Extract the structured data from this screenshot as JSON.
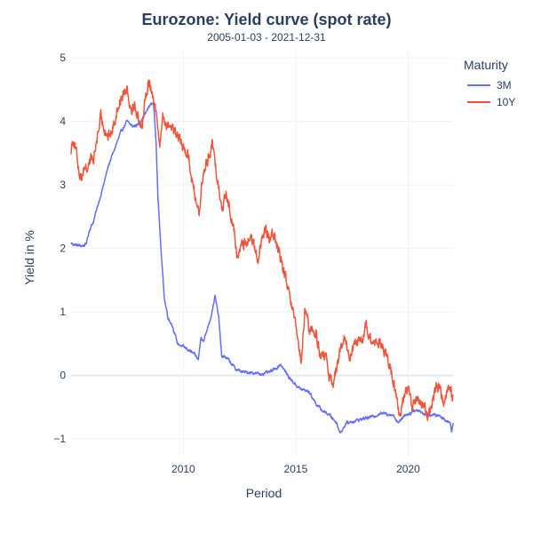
{
  "chart_data": {
    "type": "line",
    "title": "Eurozone: Yield curve (spot rate)",
    "subtitle": "2005-01-03 - 2021-12-31",
    "xlabel": "Period",
    "ylabel": "Yield in %",
    "xlim": [
      "2005-01-03",
      "2021-12-31"
    ],
    "ylim": [
      -1.25,
      5.1
    ],
    "x_ticks": [
      2010,
      2015,
      2020
    ],
    "y_ticks": [
      -1,
      0,
      1,
      2,
      3,
      4,
      5
    ],
    "grid": true,
    "legend": {
      "title": "Maturity",
      "placement": "top-right"
    },
    "series": [
      {
        "name": "3M",
        "color": "#636efa",
        "points": [
          [
            "2005-01-03",
            2.08
          ],
          [
            "2005-04-01",
            2.05
          ],
          [
            "2005-07-01",
            2.04
          ],
          [
            "2005-09-01",
            2.06
          ],
          [
            "2005-11-01",
            2.3
          ],
          [
            "2006-01-01",
            2.42
          ],
          [
            "2006-03-01",
            2.63
          ],
          [
            "2006-06-01",
            2.95
          ],
          [
            "2006-09-01",
            3.3
          ],
          [
            "2007-01-01",
            3.62
          ],
          [
            "2007-04-01",
            3.85
          ],
          [
            "2007-07-01",
            4.0
          ],
          [
            "2007-10-01",
            3.92
          ],
          [
            "2008-01-01",
            3.95
          ],
          [
            "2008-04-01",
            4.08
          ],
          [
            "2008-07-01",
            4.25
          ],
          [
            "2008-09-01",
            4.3
          ],
          [
            "2008-10-15",
            3.7
          ],
          [
            "2008-11-15",
            2.8
          ],
          [
            "2008-12-15",
            2.3
          ],
          [
            "2009-01-15",
            1.8
          ],
          [
            "2009-03-01",
            1.2
          ],
          [
            "2009-05-01",
            0.9
          ],
          [
            "2009-07-01",
            0.8
          ],
          [
            "2009-10-01",
            0.5
          ],
          [
            "2010-01-01",
            0.45
          ],
          [
            "2010-04-01",
            0.4
          ],
          [
            "2010-07-01",
            0.33
          ],
          [
            "2010-09-01",
            0.25
          ],
          [
            "2010-10-15",
            0.6
          ],
          [
            "2010-12-01",
            0.55
          ],
          [
            "2011-01-15",
            0.7
          ],
          [
            "2011-04-01",
            0.95
          ],
          [
            "2011-06-01",
            1.25
          ],
          [
            "2011-08-01",
            0.9
          ],
          [
            "2011-09-15",
            0.3
          ],
          [
            "2011-11-01",
            0.3
          ],
          [
            "2012-01-01",
            0.25
          ],
          [
            "2012-05-01",
            0.1
          ],
          [
            "2012-09-01",
            0.05
          ],
          [
            "2013-01-01",
            0.05
          ],
          [
            "2013-06-01",
            0.02
          ],
          [
            "2013-11-01",
            0.05
          ],
          [
            "2014-03-01",
            0.12
          ],
          [
            "2014-05-01",
            0.18
          ],
          [
            "2014-07-01",
            0.08
          ],
          [
            "2014-10-01",
            -0.05
          ],
          [
            "2015-01-01",
            -0.15
          ],
          [
            "2015-04-01",
            -0.22
          ],
          [
            "2015-08-01",
            -0.25
          ],
          [
            "2015-12-01",
            -0.45
          ],
          [
            "2016-03-01",
            -0.55
          ],
          [
            "2016-07-01",
            -0.62
          ],
          [
            "2016-11-01",
            -0.75
          ],
          [
            "2016-12-15",
            -0.9
          ],
          [
            "2017-02-01",
            -0.85
          ],
          [
            "2017-04-01",
            -0.75
          ],
          [
            "2017-08-01",
            -0.72
          ],
          [
            "2018-01-01",
            -0.68
          ],
          [
            "2018-06-01",
            -0.65
          ],
          [
            "2018-10-01",
            -0.6
          ],
          [
            "2019-01-01",
            -0.6
          ],
          [
            "2019-05-01",
            -0.62
          ],
          [
            "2019-08-01",
            -0.75
          ],
          [
            "2019-11-01",
            -0.62
          ],
          [
            "2020-02-01",
            -0.6
          ],
          [
            "2020-04-01",
            -0.55
          ],
          [
            "2020-07-01",
            -0.55
          ],
          [
            "2020-10-01",
            -0.62
          ],
          [
            "2021-01-01",
            -0.62
          ],
          [
            "2021-05-01",
            -0.63
          ],
          [
            "2021-08-01",
            -0.68
          ],
          [
            "2021-11-15",
            -0.75
          ],
          [
            "2021-12-10",
            -0.88
          ],
          [
            "2021-12-31",
            -0.75
          ]
        ]
      },
      {
        "name": "10Y",
        "color": "#ef553b",
        "points": [
          [
            "2005-01-03",
            3.55
          ],
          [
            "2005-02-01",
            3.75
          ],
          [
            "2005-03-01",
            3.65
          ],
          [
            "2005-05-01",
            3.3
          ],
          [
            "2005-06-15",
            3.1
          ],
          [
            "2005-08-01",
            3.3
          ],
          [
            "2005-10-01",
            3.25
          ],
          [
            "2005-11-15",
            3.45
          ],
          [
            "2006-01-01",
            3.35
          ],
          [
            "2006-03-01",
            3.75
          ],
          [
            "2006-05-01",
            4.05
          ],
          [
            "2006-07-01",
            3.9
          ],
          [
            "2006-09-01",
            3.75
          ],
          [
            "2006-11-01",
            3.85
          ],
          [
            "2007-01-01",
            4.1
          ],
          [
            "2007-03-01",
            4.3
          ],
          [
            "2007-05-01",
            4.45
          ],
          [
            "2007-07-01",
            4.55
          ],
          [
            "2007-09-01",
            4.2
          ],
          [
            "2007-11-01",
            4.25
          ],
          [
            "2008-01-15",
            4.0
          ],
          [
            "2008-03-01",
            3.95
          ],
          [
            "2008-05-01",
            4.35
          ],
          [
            "2008-06-15",
            4.7
          ],
          [
            "2008-08-01",
            4.45
          ],
          [
            "2008-10-01",
            4.3
          ],
          [
            "2008-11-15",
            3.85
          ],
          [
            "2008-12-15",
            3.6
          ],
          [
            "2009-02-01",
            4.1
          ],
          [
            "2009-04-01",
            3.95
          ],
          [
            "2009-06-01",
            3.95
          ],
          [
            "2009-09-01",
            3.8
          ],
          [
            "2009-12-01",
            3.65
          ],
          [
            "2010-02-01",
            3.55
          ],
          [
            "2010-04-01",
            3.45
          ],
          [
            "2010-06-01",
            3.0
          ],
          [
            "2010-08-01",
            2.75
          ],
          [
            "2010-09-15",
            2.55
          ],
          [
            "2010-11-01",
            3.05
          ],
          [
            "2011-01-01",
            3.3
          ],
          [
            "2011-03-01",
            3.5
          ],
          [
            "2011-04-15",
            3.65
          ],
          [
            "2011-06-01",
            3.35
          ],
          [
            "2011-08-01",
            2.95
          ],
          [
            "2011-10-01",
            2.65
          ],
          [
            "2011-12-01",
            2.85
          ],
          [
            "2012-02-01",
            2.6
          ],
          [
            "2012-04-01",
            2.3
          ],
          [
            "2012-06-01",
            1.8
          ],
          [
            "2012-08-01",
            2.1
          ],
          [
            "2012-10-01",
            2.05
          ],
          [
            "2013-01-01",
            2.2
          ],
          [
            "2013-03-01",
            2.0
          ],
          [
            "2013-05-01",
            1.85
          ],
          [
            "2013-07-01",
            2.1
          ],
          [
            "2013-09-01",
            2.3
          ],
          [
            "2013-11-01",
            2.1
          ],
          [
            "2014-01-01",
            2.25
          ],
          [
            "2014-04-01",
            1.95
          ],
          [
            "2014-07-01",
            1.6
          ],
          [
            "2014-10-01",
            1.2
          ],
          [
            "2015-01-01",
            0.75
          ],
          [
            "2015-02-15",
            0.45
          ],
          [
            "2015-04-01",
            0.2
          ],
          [
            "2015-06-01",
            1.05
          ],
          [
            "2015-08-01",
            0.75
          ],
          [
            "2015-10-01",
            0.7
          ],
          [
            "2015-12-01",
            0.65
          ],
          [
            "2016-02-01",
            0.35
          ],
          [
            "2016-05-01",
            0.25
          ],
          [
            "2016-07-01",
            0.0
          ],
          [
            "2016-09-01",
            -0.15
          ],
          [
            "2016-11-01",
            0.2
          ],
          [
            "2017-01-01",
            0.4
          ],
          [
            "2017-03-01",
            0.55
          ],
          [
            "2017-06-01",
            0.3
          ],
          [
            "2017-09-01",
            0.5
          ],
          [
            "2018-01-01",
            0.55
          ],
          [
            "2018-02-15",
            0.8
          ],
          [
            "2018-05-01",
            0.55
          ],
          [
            "2018-08-01",
            0.45
          ],
          [
            "2018-10-01",
            0.55
          ],
          [
            "2019-01-01",
            0.35
          ],
          [
            "2019-03-01",
            0.15
          ],
          [
            "2019-06-01",
            -0.2
          ],
          [
            "2019-08-15",
            -0.65
          ],
          [
            "2019-11-01",
            -0.3
          ],
          [
            "2020-01-01",
            -0.15
          ],
          [
            "2020-03-15",
            -0.6
          ],
          [
            "2020-04-01",
            -0.35
          ],
          [
            "2020-06-01",
            -0.4
          ],
          [
            "2020-09-01",
            -0.5
          ],
          [
            "2020-12-01",
            -0.6
          ],
          [
            "2021-02-01",
            -0.4
          ],
          [
            "2021-04-01",
            -0.2
          ],
          [
            "2021-06-01",
            -0.15
          ],
          [
            "2021-08-01",
            -0.45
          ],
          [
            "2021-10-01",
            -0.15
          ],
          [
            "2021-11-15",
            -0.25
          ],
          [
            "2021-12-31",
            -0.3
          ]
        ]
      }
    ]
  }
}
